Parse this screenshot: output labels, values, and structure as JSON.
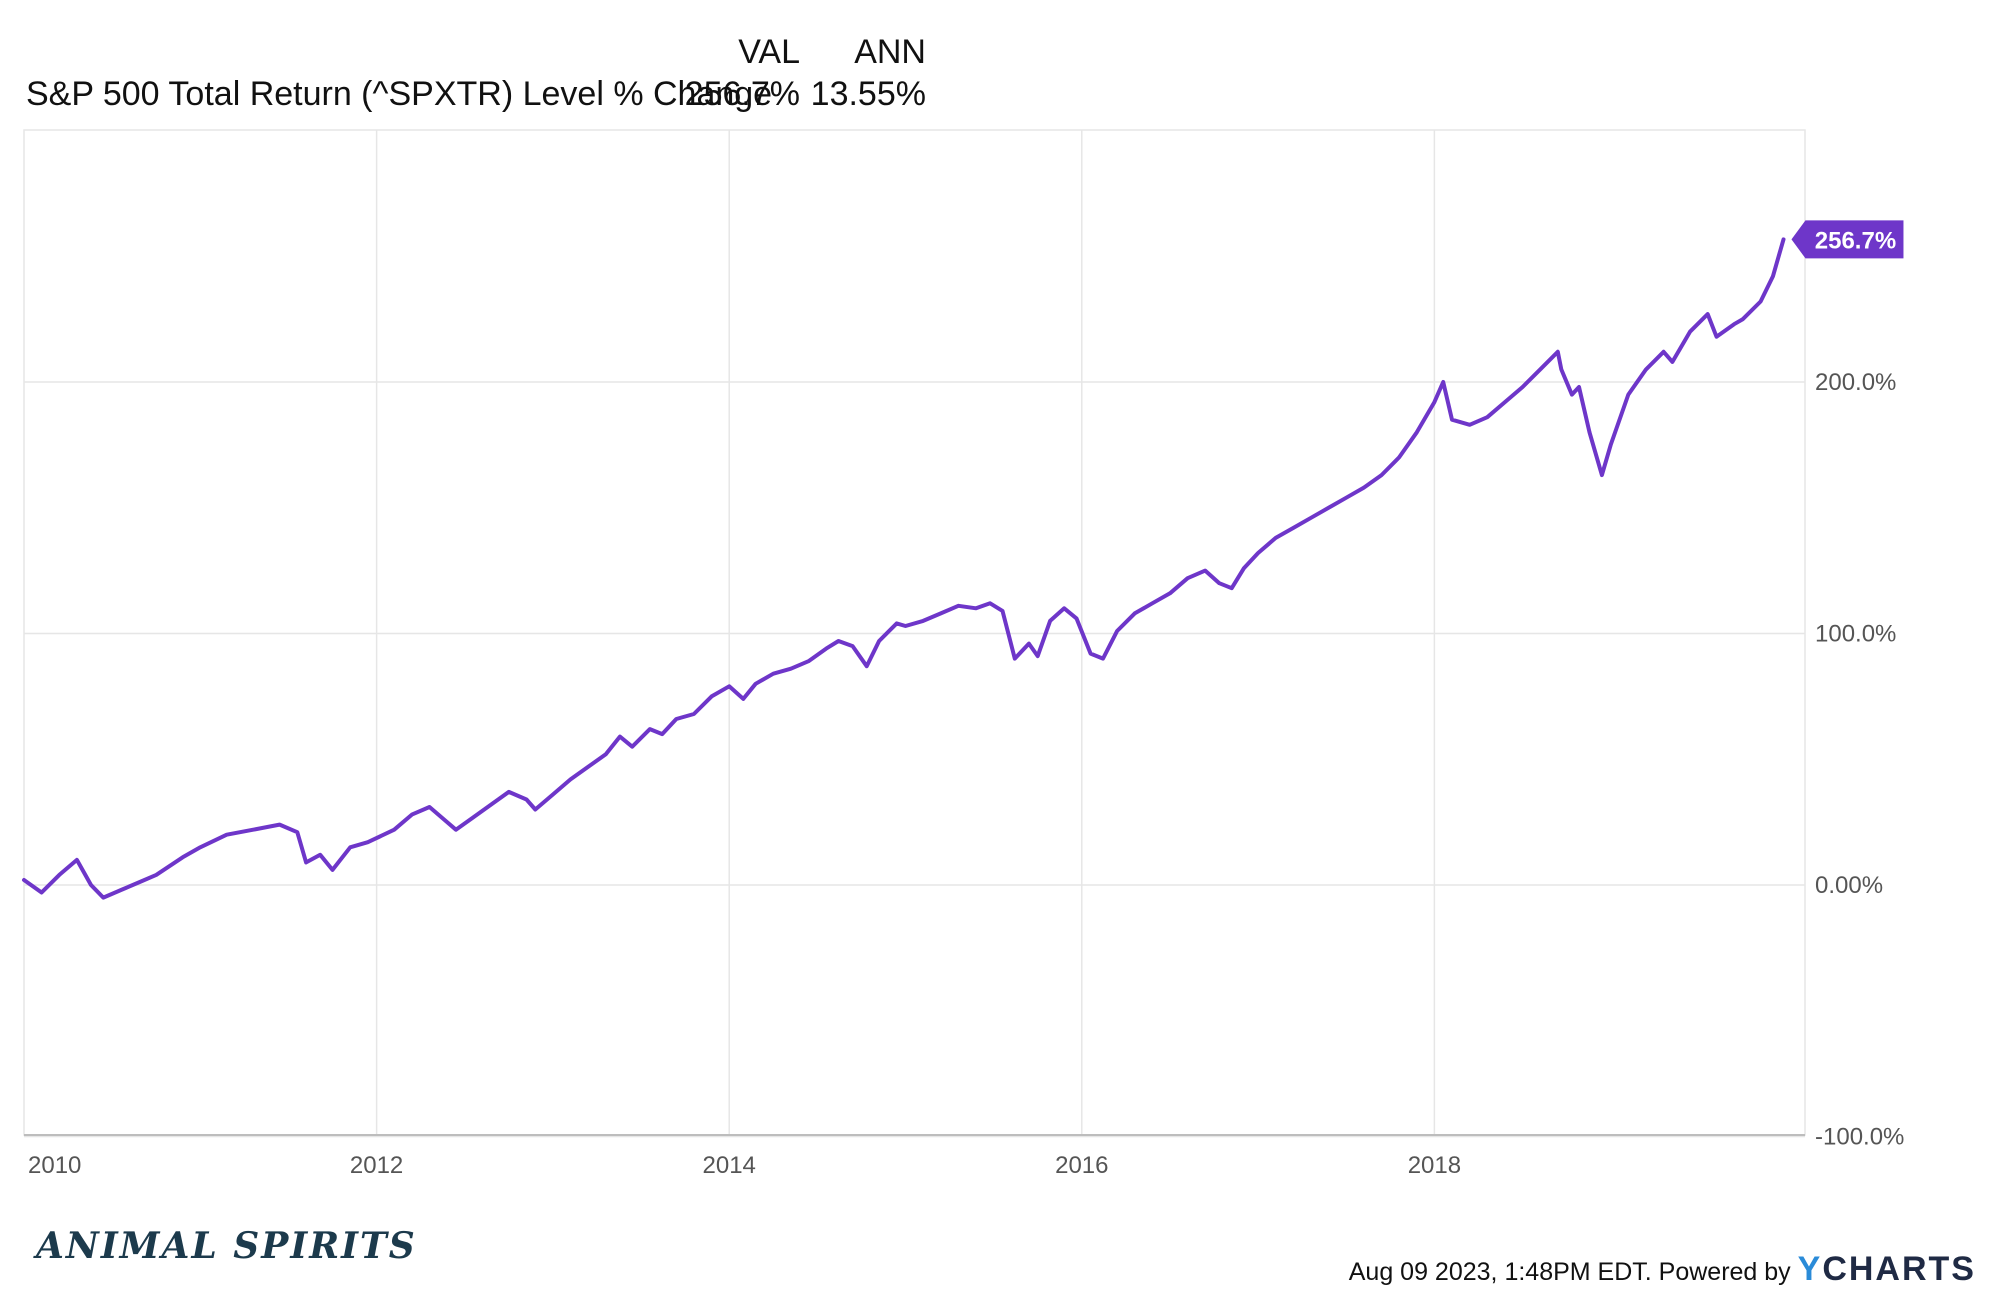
{
  "header": {
    "col_val": "VAL",
    "col_ann": "ANN",
    "series_name": "S&P 500 Total Return (^SPXTR) Level % Change",
    "val": "256.7%",
    "ann": "13.55%"
  },
  "footer": {
    "brand_left": "ANIMAL SPIRITS",
    "timestamp": "Aug 09 2023, 1:48PM EDT. Powered by",
    "brand_right_y": "Y",
    "brand_right_rest": "CHARTS"
  },
  "colors": {
    "line": "#6e36c9",
    "grid": "#e6e6e6",
    "label_bg": "#6e36c9"
  },
  "chart_data": {
    "type": "line",
    "title": "",
    "series": [
      {
        "name": "S&P 500 Total Return (^SPXTR) Level % Change",
        "end_label": "256.7%",
        "points": [
          [
            2010.0,
            2
          ],
          [
            2010.1,
            -3
          ],
          [
            2010.2,
            4
          ],
          [
            2010.3,
            10
          ],
          [
            2010.38,
            0
          ],
          [
            2010.45,
            -5
          ],
          [
            2010.55,
            -2
          ],
          [
            2010.65,
            1
          ],
          [
            2010.75,
            4
          ],
          [
            2010.9,
            11
          ],
          [
            2011.0,
            15
          ],
          [
            2011.15,
            20
          ],
          [
            2011.3,
            22
          ],
          [
            2011.45,
            24
          ],
          [
            2011.55,
            21
          ],
          [
            2011.6,
            9
          ],
          [
            2011.68,
            12
          ],
          [
            2011.75,
            6
          ],
          [
            2011.85,
            15
          ],
          [
            2011.95,
            17
          ],
          [
            2012.1,
            22
          ],
          [
            2012.2,
            28
          ],
          [
            2012.3,
            31
          ],
          [
            2012.4,
            25
          ],
          [
            2012.45,
            22
          ],
          [
            2012.55,
            27
          ],
          [
            2012.65,
            32
          ],
          [
            2012.75,
            37
          ],
          [
            2012.85,
            34
          ],
          [
            2012.9,
            30
          ],
          [
            2013.0,
            36
          ],
          [
            2013.1,
            42
          ],
          [
            2013.2,
            47
          ],
          [
            2013.3,
            52
          ],
          [
            2013.38,
            59
          ],
          [
            2013.45,
            55
          ],
          [
            2013.55,
            62
          ],
          [
            2013.62,
            60
          ],
          [
            2013.7,
            66
          ],
          [
            2013.8,
            68
          ],
          [
            2013.9,
            75
          ],
          [
            2014.0,
            79
          ],
          [
            2014.08,
            74
          ],
          [
            2014.15,
            80
          ],
          [
            2014.25,
            84
          ],
          [
            2014.35,
            86
          ],
          [
            2014.45,
            89
          ],
          [
            2014.55,
            94
          ],
          [
            2014.62,
            97
          ],
          [
            2014.7,
            95
          ],
          [
            2014.78,
            87
          ],
          [
            2014.85,
            97
          ],
          [
            2014.95,
            104
          ],
          [
            2015.0,
            103
          ],
          [
            2015.1,
            105
          ],
          [
            2015.2,
            108
          ],
          [
            2015.3,
            111
          ],
          [
            2015.4,
            110
          ],
          [
            2015.48,
            112
          ],
          [
            2015.55,
            109
          ],
          [
            2015.62,
            90
          ],
          [
            2015.7,
            96
          ],
          [
            2015.75,
            91
          ],
          [
            2015.82,
            105
          ],
          [
            2015.9,
            110
          ],
          [
            2015.97,
            106
          ],
          [
            2016.05,
            92
          ],
          [
            2016.12,
            90
          ],
          [
            2016.2,
            101
          ],
          [
            2016.3,
            108
          ],
          [
            2016.4,
            112
          ],
          [
            2016.5,
            116
          ],
          [
            2016.6,
            122
          ],
          [
            2016.7,
            125
          ],
          [
            2016.78,
            120
          ],
          [
            2016.85,
            118
          ],
          [
            2016.92,
            126
          ],
          [
            2017.0,
            132
          ],
          [
            2017.1,
            138
          ],
          [
            2017.2,
            142
          ],
          [
            2017.3,
            146
          ],
          [
            2017.4,
            150
          ],
          [
            2017.5,
            154
          ],
          [
            2017.6,
            158
          ],
          [
            2017.7,
            163
          ],
          [
            2017.8,
            170
          ],
          [
            2017.9,
            180
          ],
          [
            2018.0,
            192
          ],
          [
            2018.05,
            200
          ],
          [
            2018.1,
            185
          ],
          [
            2018.2,
            183
          ],
          [
            2018.3,
            186
          ],
          [
            2018.4,
            192
          ],
          [
            2018.5,
            198
          ],
          [
            2018.6,
            205
          ],
          [
            2018.7,
            212
          ],
          [
            2018.72,
            205
          ],
          [
            2018.78,
            195
          ],
          [
            2018.82,
            198
          ],
          [
            2018.88,
            180
          ],
          [
            2018.95,
            163
          ],
          [
            2019.0,
            175
          ],
          [
            2019.1,
            195
          ],
          [
            2019.2,
            205
          ],
          [
            2019.3,
            212
          ],
          [
            2019.35,
            208
          ],
          [
            2019.45,
            220
          ],
          [
            2019.55,
            227
          ],
          [
            2019.6,
            218
          ],
          [
            2019.7,
            223
          ],
          [
            2019.75,
            225
          ],
          [
            2019.85,
            232
          ],
          [
            2019.92,
            242
          ],
          [
            2019.98,
            256.7
          ]
        ]
      }
    ],
    "x_ticks": [
      "2010",
      "2012",
      "2014",
      "2016",
      "2018"
    ],
    "y_ticks": [
      "-100.0%",
      "0.00%",
      "100.0%",
      "200.0%"
    ],
    "xlim": [
      2010,
      2020
    ],
    "ylim": [
      -100,
      300
    ],
    "grid": true,
    "legend": "top-left"
  }
}
